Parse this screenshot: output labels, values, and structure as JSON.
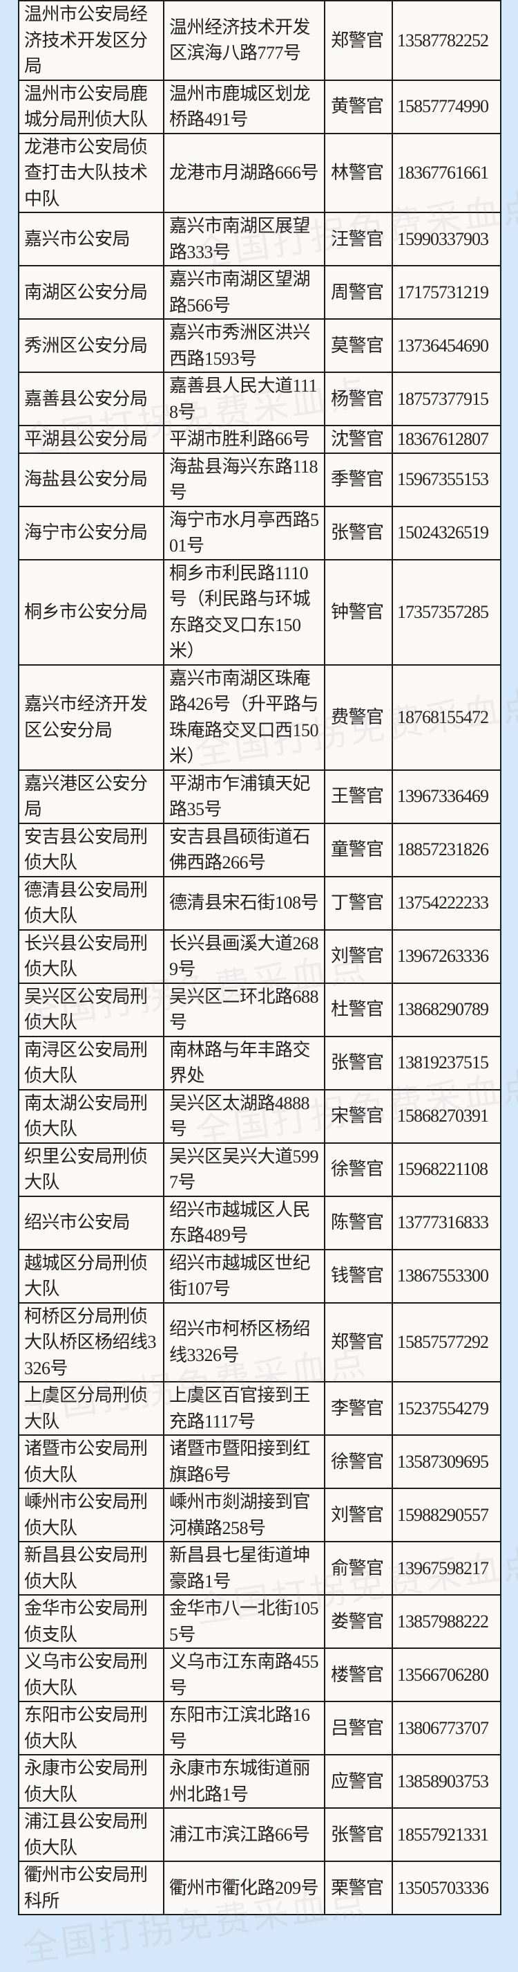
{
  "colors": {
    "background": "#d5e7fb",
    "table_bg": "#fbf9f8",
    "border": "#1c1c1c"
  },
  "watermark": "全国打拐免费采血点",
  "rows": [
    {
      "unit": "温州市公安局经济技术开发区分局",
      "address": "温州经济技术开发区滨海八路777号",
      "officer": "郑警官",
      "phone": "13587782252"
    },
    {
      "unit": "温州市公安局鹿城分局刑侦大队",
      "address": "温州市鹿城区划龙桥路491号",
      "officer": "黄警官",
      "phone": "15857774990"
    },
    {
      "unit": "龙港市公安局侦查打击大队技术中队",
      "address": "龙港市月湖路666号",
      "officer": "林警官",
      "phone": "18367761661"
    },
    {
      "unit": "嘉兴市公安局",
      "address": "嘉兴市南湖区展望路333号",
      "officer": "汪警官",
      "phone": "15990337903"
    },
    {
      "unit": "南湖区公安分局",
      "address": "嘉兴市南湖区望湖路566号",
      "officer": "周警官",
      "phone": "17175731219"
    },
    {
      "unit": "秀洲区公安分局",
      "address": "嘉兴市秀洲区洪兴西路1593号",
      "officer": "莫警官",
      "phone": "13736454690"
    },
    {
      "unit": "嘉善县公安分局",
      "address": "嘉善县人民大道1118号",
      "officer": "杨警官",
      "phone": "18757377915"
    },
    {
      "unit": "平湖县公安分局",
      "address": "平湖市胜利路66号",
      "officer": "沈警官",
      "phone": "18367612807"
    },
    {
      "unit": "海盐县公安分局",
      "address": "海盐县海兴东路118号",
      "officer": "季警官",
      "phone": "15967355153"
    },
    {
      "unit": "海宁市公安分局",
      "address": "海宁市水月亭西路501号",
      "officer": "张警官",
      "phone": "15024326519"
    },
    {
      "unit": "桐乡市公安分局",
      "address": "桐乡市利民路1110号（利民路与环城东路交叉口东150米）",
      "officer": "钟警官",
      "phone": "17357357285"
    },
    {
      "unit": "嘉兴市经济开发区公安分局",
      "address": "嘉兴市南湖区珠庵路426号（升平路与珠庵路交叉口西150米）",
      "officer": "费警官",
      "phone": "18768155472"
    },
    {
      "unit": "嘉兴港区公安分局",
      "address": "平湖市乍浦镇天妃路35号",
      "officer": "王警官",
      "phone": "13967336469"
    },
    {
      "unit": "安吉县公安局刑侦大队",
      "address": "安吉县昌硕街道石佛西路266号",
      "officer": "童警官",
      "phone": "18857231826"
    },
    {
      "unit": "德清县公安局刑侦大队",
      "address": "德清县宋石街108号",
      "officer": "丁警官",
      "phone": "13754222233"
    },
    {
      "unit": "长兴县公安局刑侦大队",
      "address": "长兴县画溪大道2689号",
      "officer": "刘警官",
      "phone": "13967263336"
    },
    {
      "unit": "吴兴区公安局刑侦大队",
      "address": "吴兴区二环北路688号",
      "officer": "杜警官",
      "phone": "13868290789"
    },
    {
      "unit": "南浔区公安局刑侦大队",
      "address": "南林路与年丰路交界处",
      "officer": "张警官",
      "phone": "13819237515"
    },
    {
      "unit": "南太湖公安局刑侦大队",
      "address": "吴兴区太湖路4888号",
      "officer": "宋警官",
      "phone": "15868270391"
    },
    {
      "unit": "织里公安局刑侦大队",
      "address": "吴兴区吴兴大道5997号",
      "officer": "徐警官",
      "phone": "15968221108"
    },
    {
      "unit": "绍兴市公安局",
      "address": "绍兴市越城区人民东路489号",
      "officer": "陈警官",
      "phone": "13777316833"
    },
    {
      "unit": "越城区分局刑侦大队",
      "address": "绍兴市越城区世纪街107号",
      "officer": "钱警官",
      "phone": "13867553300"
    },
    {
      "unit": "柯桥区分局刑侦大队桥区杨绍线3326号",
      "address": "绍兴市柯桥区杨绍线3326号",
      "officer": "郑警官",
      "phone": "15857577292"
    },
    {
      "unit": "上虞区分局刑侦大队",
      "address": "上虞区百官接到王充路1117号",
      "officer": "李警官",
      "phone": "15237554279"
    },
    {
      "unit": "诸暨市公安局刑侦大队",
      "address": "诸暨市暨阳接到红旗路6号",
      "officer": "徐警官",
      "phone": "13587309695"
    },
    {
      "unit": "嵊州市公安局刑侦大队",
      "address": "嵊州市剡湖接到官河横路258号",
      "officer": "刘警官",
      "phone": "15988290557"
    },
    {
      "unit": "新昌县公安局刑侦大队",
      "address": "新昌县七星街道坤豪路1号",
      "officer": "俞警官",
      "phone": "13967598217"
    },
    {
      "unit": "金华市公安局刑侦支队",
      "address": "金华市八一北街1055号",
      "officer": "娄警官",
      "phone": "13857988222"
    },
    {
      "unit": "义乌市公安局刑侦大队",
      "address": "义乌市江东南路455号",
      "officer": "楼警官",
      "phone": "13566706280"
    },
    {
      "unit": "东阳市公安局刑侦大队",
      "address": "东阳市江滨北路16号",
      "officer": "吕警官",
      "phone": "13806773707"
    },
    {
      "unit": "永康市公安局刑侦大队",
      "address": "永康市东城街道丽州北路1号",
      "officer": "应警官",
      "phone": "13858903753"
    },
    {
      "unit": "浦江县公安局刑侦大队",
      "address": "浦江市滨江路66号",
      "officer": "张警官",
      "phone": "18557921331"
    },
    {
      "unit": "衢州市公安局刑科所",
      "address": "衢州市衢化路209号",
      "officer": "栗警官",
      "phone": "13505703336"
    }
  ]
}
